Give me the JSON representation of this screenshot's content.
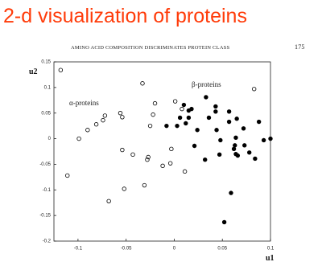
{
  "chart_data": {
    "type": "scatter",
    "title": "2-d visualization of proteins",
    "header": "AMINO ACID COMPOSITION DISCRIMINATES PROTEIN CLASS",
    "page_number": "175",
    "x_label": "u1",
    "y_label": "u2",
    "annotations": [
      "α-proteins",
      "β-proteins"
    ],
    "xlim": [
      -0.125,
      0.1
    ],
    "ylim": [
      -0.2,
      0.15
    ],
    "xticks": [
      -0.1,
      -0.05,
      0,
      0.05,
      0.1
    ],
    "yticks": [
      -0.2,
      -0.15,
      -0.1,
      -0.05,
      0,
      0.05,
      0.1,
      0.15
    ],
    "series": [
      {
        "color": "#000000",
        "filled": false,
        "x": [
          -0.118,
          -0.111,
          -0.099,
          -0.09,
          -0.081,
          -0.074,
          -0.072,
          -0.068,
          -0.056,
          -0.054,
          -0.054,
          -0.052,
          -0.043,
          -0.033,
          -0.031,
          -0.028,
          -0.027,
          -0.025,
          -0.022,
          -0.02,
          -0.012,
          -0.004,
          -0.003,
          0.001,
          0.011,
          0.008,
          0.083
        ],
        "values": [
          0.134,
          -0.072,
          0.0,
          0.017,
          0.028,
          0.036,
          0.045,
          -0.122,
          0.05,
          0.042,
          -0.022,
          -0.098,
          -0.031,
          0.108,
          -0.091,
          -0.041,
          -0.036,
          0.025,
          0.047,
          0.069,
          -0.053,
          -0.048,
          -0.02,
          0.073,
          -0.064,
          0.058,
          0.097
        ]
      },
      {
        "color": "#000000",
        "filled": true,
        "x": [
          -0.008,
          0.003,
          0.006,
          0.01,
          0.015,
          0.015,
          0.012,
          0.018,
          0.021,
          0.024,
          0.032,
          0.033,
          0.036,
          0.043,
          0.043,
          0.044,
          0.048,
          0.047,
          0.052,
          0.057,
          0.057,
          0.065,
          0.062,
          0.063,
          0.064,
          0.064,
          0.066,
          0.059,
          0.072,
          0.073,
          0.078,
          0.084,
          0.088,
          0.093,
          0.1
        ],
        "values": [
          0.025,
          0.025,
          0.041,
          0.066,
          0.041,
          0.055,
          0.03,
          0.058,
          -0.014,
          0.017,
          -0.041,
          0.081,
          0.041,
          0.063,
          0.053,
          0.017,
          -0.003,
          -0.031,
          -0.163,
          0.053,
          0.033,
          0.039,
          -0.02,
          -0.013,
          0.002,
          -0.03,
          -0.033,
          -0.106,
          0.02,
          -0.013,
          -0.027,
          -0.039,
          0.033,
          -0.003,
          0.0
        ]
      }
    ]
  }
}
